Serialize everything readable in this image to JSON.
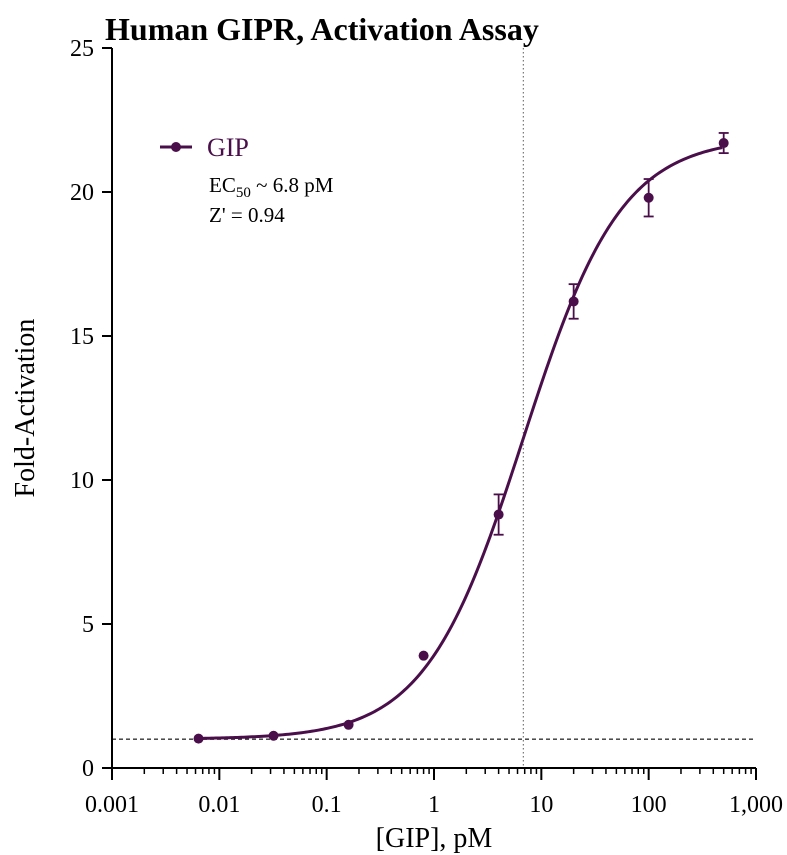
{
  "chart_data": {
    "type": "scatter",
    "title": "Human GIPR, Activation Assay",
    "xlabel": "[GIP], pM",
    "ylabel": "Fold-Activation",
    "x_scale": "log",
    "xlim": [
      0.001,
      1000
    ],
    "ylim": [
      0,
      25
    ],
    "x_ticks": [
      0.001,
      0.01,
      0.1,
      1,
      10,
      100,
      1000
    ],
    "x_tick_labels": [
      "0.001",
      "0.01",
      "0.1",
      "1",
      "10",
      "100",
      "1,000"
    ],
    "y_ticks": [
      0,
      5,
      10,
      15,
      20,
      25
    ],
    "y_tick_labels": [
      "0",
      "5",
      "10",
      "15",
      "20",
      "25"
    ],
    "grid": false,
    "legend_position": "top-left",
    "series": [
      {
        "name": "GIP",
        "color": "#4a0f4a",
        "x": [
          0.0064,
          0.032,
          0.16,
          0.8,
          4,
          20,
          100,
          500
        ],
        "y": [
          1.02,
          1.12,
          1.5,
          3.9,
          8.8,
          16.2,
          19.8,
          21.7
        ],
        "yerr": [
          0,
          0,
          0,
          0,
          0.7,
          0.6,
          0.65,
          0.35
        ],
        "fit": {
          "model": "four-parameter logistic",
          "bottom": 1.0,
          "top": 21.9,
          "ec50": 6.8,
          "hill": 0.95
        }
      }
    ],
    "reference_lines": [
      {
        "orientation": "vertical",
        "value": 6.8,
        "style": "dotted"
      },
      {
        "orientation": "horizontal",
        "value": 1.0,
        "style": "dashed"
      }
    ],
    "annotations": {
      "ec50_prefix": "EC",
      "ec50_subscript": "50",
      "ec50_suffix": " ~ 6.8 pM",
      "z_prime": "Z' = 0.94"
    }
  }
}
